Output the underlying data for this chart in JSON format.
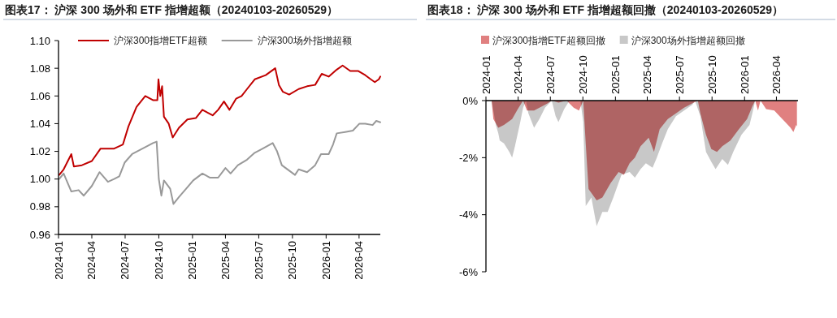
{
  "chart_data": [
    {
      "type": "line",
      "title": "图表17：  沪深 300 场外和 ETF 指增超额（20240103-20260529）",
      "legend": "top",
      "grid": false,
      "xlim": [
        "2024-01-01",
        "2026-05-29"
      ],
      "xticks": [
        "2024-01",
        "2024-04",
        "2024-07",
        "2024-10",
        "2025-01",
        "2025-04",
        "2025-07",
        "2025-10",
        "2026-01",
        "2026-04"
      ],
      "ylim": [
        0.96,
        1.1
      ],
      "yticks": [
        {
          "value": 0.96,
          "label": "0.96"
        },
        {
          "value": 0.98,
          "label": "0.98"
        },
        {
          "value": 1.0,
          "label": "1.00"
        },
        {
          "value": 1.02,
          "label": "1.02"
        },
        {
          "value": 1.04,
          "label": "1.04"
        },
        {
          "value": 1.06,
          "label": "1.06"
        },
        {
          "value": 1.08,
          "label": "1.08"
        },
        {
          "value": 1.1,
          "label": "1.10"
        }
      ],
      "series": [
        {
          "name": "沪深300指增ETF超额",
          "color": "#c00000",
          "x": [
            "2024-01-03",
            "2024-01-15",
            "2024-02-05",
            "2024-02-12",
            "2024-03-05",
            "2024-04-01",
            "2024-04-25",
            "2024-06-01",
            "2024-06-25",
            "2024-07-10",
            "2024-08-01",
            "2024-08-25",
            "2024-09-15",
            "2024-09-27",
            "2024-09-30",
            "2024-10-05",
            "2024-10-10",
            "2024-10-15",
            "2024-10-28",
            "2024-11-08",
            "2024-11-25",
            "2024-12-18",
            "2025-01-10",
            "2025-01-28",
            "2025-02-25",
            "2025-03-12",
            "2025-03-28",
            "2025-04-12",
            "2025-04-30",
            "2025-05-15",
            "2025-05-30",
            "2025-06-20",
            "2025-07-20",
            "2025-08-15",
            "2025-08-25",
            "2025-09-05",
            "2025-09-22",
            "2025-10-18",
            "2025-11-10",
            "2025-12-02",
            "2025-12-20",
            "2026-01-08",
            "2026-01-30",
            "2026-02-15",
            "2026-03-08",
            "2026-03-30",
            "2026-04-18",
            "2026-05-03",
            "2026-05-14",
            "2026-05-25",
            "2026-05-29"
          ],
          "values": [
            1.003,
            1.007,
            1.018,
            1.009,
            1.01,
            1.013,
            1.022,
            1.022,
            1.025,
            1.038,
            1.052,
            1.06,
            1.057,
            1.057,
            1.072,
            1.06,
            1.067,
            1.045,
            1.04,
            1.03,
            1.037,
            1.043,
            1.044,
            1.05,
            1.046,
            1.05,
            1.056,
            1.05,
            1.058,
            1.06,
            1.065,
            1.072,
            1.075,
            1.08,
            1.068,
            1.063,
            1.061,
            1.065,
            1.067,
            1.068,
            1.076,
            1.074,
            1.079,
            1.082,
            1.078,
            1.078,
            1.075,
            1.072,
            1.07,
            1.072,
            1.074
          ]
        },
        {
          "name": "沪深300场外指增超额",
          "color": "#999999",
          "x": [
            "2024-01-03",
            "2024-01-15",
            "2024-02-05",
            "2024-02-25",
            "2024-03-10",
            "2024-04-01",
            "2024-04-22",
            "2024-05-15",
            "2024-06-01",
            "2024-06-15",
            "2024-06-30",
            "2024-07-20",
            "2024-08-25",
            "2024-09-15",
            "2024-09-25",
            "2024-10-01",
            "2024-10-08",
            "2024-10-15",
            "2024-11-01",
            "2024-11-10",
            "2024-11-25",
            "2024-12-18",
            "2025-01-03",
            "2025-01-28",
            "2025-02-18",
            "2025-03-12",
            "2025-04-01",
            "2025-04-15",
            "2025-05-05",
            "2025-05-30",
            "2025-06-20",
            "2025-07-12",
            "2025-08-08",
            "2025-08-20",
            "2025-09-02",
            "2025-10-08",
            "2025-10-18",
            "2025-11-10",
            "2025-12-02",
            "2025-12-18",
            "2026-01-08",
            "2026-01-20",
            "2026-01-30",
            "2026-02-22",
            "2026-03-15",
            "2026-04-02",
            "2026-04-18",
            "2026-05-08",
            "2026-05-18",
            "2026-05-29"
          ],
          "values": [
            1.0,
            1.004,
            0.991,
            0.992,
            0.988,
            0.995,
            1.005,
            0.998,
            1.0,
            1.002,
            1.012,
            1.018,
            1.023,
            1.026,
            1.027,
            1.0,
            0.988,
            0.999,
            0.993,
            0.982,
            0.987,
            0.994,
            0.999,
            1.004,
            1.001,
            1.001,
            1.008,
            1.004,
            1.01,
            1.014,
            1.019,
            1.022,
            1.026,
            1.02,
            1.01,
            1.003,
            1.007,
            1.005,
            1.01,
            1.018,
            1.018,
            1.025,
            1.033,
            1.034,
            1.035,
            1.04,
            1.04,
            1.039,
            1.042,
            1.041
          ]
        }
      ]
    },
    {
      "type": "area",
      "title": "图表18：  沪深 300 场外和 ETF 指增超额回撤（20240103-20260529）",
      "legend": "top",
      "grid": false,
      "xlim": [
        "2024-01-01",
        "2026-06-01"
      ],
      "xticks": [
        "2024-01",
        "2024-04",
        "2024-07",
        "2024-10",
        "2025-01",
        "2025-04",
        "2025-07",
        "2025-10",
        "2026-01",
        "2026-04"
      ],
      "ylim": [
        -6,
        0
      ],
      "yticks": [
        {
          "value": -6,
          "label": "-6%"
        },
        {
          "value": -4,
          "label": "-4%"
        },
        {
          "value": -2,
          "label": "-2%"
        },
        {
          "value": 0,
          "label": "0%"
        }
      ],
      "series": [
        {
          "name": "沪深300指增ETF超额回撤",
          "color": "#e08080",
          "x": [
            "2024-01-03",
            "2024-01-17",
            "2024-01-22",
            "2024-02-05",
            "2024-02-21",
            "2024-03-15",
            "2024-03-31",
            "2024-04-15",
            "2024-04-26",
            "2024-05-16",
            "2024-06-08",
            "2024-06-23",
            "2024-07-05",
            "2024-07-24",
            "2024-08-16",
            "2024-09-05",
            "2024-09-20",
            "2024-10-02",
            "2024-10-09",
            "2024-10-17",
            "2024-11-09",
            "2024-11-25",
            "2024-12-18",
            "2025-01-10",
            "2025-01-25",
            "2025-02-10",
            "2025-02-25",
            "2025-03-13",
            "2025-04-05",
            "2025-04-20",
            "2025-05-06",
            "2025-05-29",
            "2025-06-21",
            "2025-07-14",
            "2025-08-06",
            "2025-08-22",
            "2025-08-29",
            "2025-09-14",
            "2025-09-29",
            "2025-10-15",
            "2025-10-30",
            "2025-11-22",
            "2025-12-16",
            "2026-01-08",
            "2026-01-23",
            "2026-01-31",
            "2026-02-08",
            "2026-02-15",
            "2026-03-03",
            "2026-03-26",
            "2026-04-10",
            "2026-04-26",
            "2026-05-11",
            "2026-05-19",
            "2026-05-27",
            "2026-05-29"
          ],
          "values": [
            0,
            0,
            -0.65,
            -0.95,
            -0.85,
            -0.65,
            -0.3,
            0,
            -0.35,
            -0.35,
            -0.2,
            -0.1,
            0,
            -0.07,
            0,
            -0.25,
            -0.35,
            0,
            -1.5,
            -3.1,
            -3.5,
            -3.4,
            -2.9,
            -2.5,
            -2.6,
            -2.2,
            -2.0,
            -1.6,
            -1.3,
            -1.8,
            -1.0,
            -0.65,
            -0.45,
            -0.25,
            -0.1,
            0,
            -0.45,
            -1.2,
            -1.7,
            -1.8,
            -1.6,
            -1.4,
            -1.0,
            -0.65,
            -0.2,
            0,
            -0.35,
            0,
            -0.3,
            -0.35,
            -0.55,
            -0.75,
            -0.95,
            -1.1,
            -0.85,
            -0.9
          ]
        },
        {
          "name": "沪深300场外指增超额回撤",
          "color": "#c8c8c8",
          "x": [
            "2024-01-03",
            "2024-01-17",
            "2024-01-29",
            "2024-02-05",
            "2024-02-09",
            "2024-02-21",
            "2024-03-07",
            "2024-03-15",
            "2024-03-23",
            "2024-04-07",
            "2024-04-15",
            "2024-04-23",
            "2024-04-30",
            "2024-05-16",
            "2024-05-31",
            "2024-06-16",
            "2024-07-05",
            "2024-07-16",
            "2024-07-24",
            "2024-08-09",
            "2024-08-24",
            "2024-09-24",
            "2024-10-02",
            "2024-10-09",
            "2024-10-25",
            "2024-11-09",
            "2024-11-25",
            "2024-12-10",
            "2024-12-26",
            "2025-01-18",
            "2025-02-10",
            "2025-02-25",
            "2025-03-13",
            "2025-03-28",
            "2025-04-16",
            "2025-04-28",
            "2025-05-13",
            "2025-05-29",
            "2025-06-21",
            "2025-07-14",
            "2025-08-06",
            "2025-08-14",
            "2025-08-29",
            "2025-09-14",
            "2025-09-29",
            "2025-10-11",
            "2025-10-30",
            "2025-11-15",
            "2025-11-30",
            "2025-12-23",
            "2026-01-15",
            "2026-01-23",
            "2026-01-31",
            "2026-05-29"
          ],
          "values": [
            0,
            0,
            -0.85,
            -1.15,
            -1.4,
            -1.5,
            -1.8,
            -2.0,
            -1.6,
            -0.75,
            -0.25,
            0,
            -0.45,
            -0.95,
            -0.65,
            -0.25,
            0,
            -0.55,
            -0.75,
            -0.3,
            0,
            0,
            -0.75,
            -3.7,
            -3.4,
            -4.4,
            -3.9,
            -3.9,
            -3.4,
            -2.6,
            -2.5,
            -2.7,
            -2.4,
            -2.2,
            -2.35,
            -2.0,
            -1.5,
            -1.0,
            -0.55,
            -0.35,
            -0.15,
            0,
            -0.55,
            -1.8,
            -2.15,
            -2.4,
            -2.05,
            -2.25,
            -1.8,
            -1.2,
            -0.85,
            -0.45,
            0,
            0
          ]
        }
      ]
    }
  ]
}
